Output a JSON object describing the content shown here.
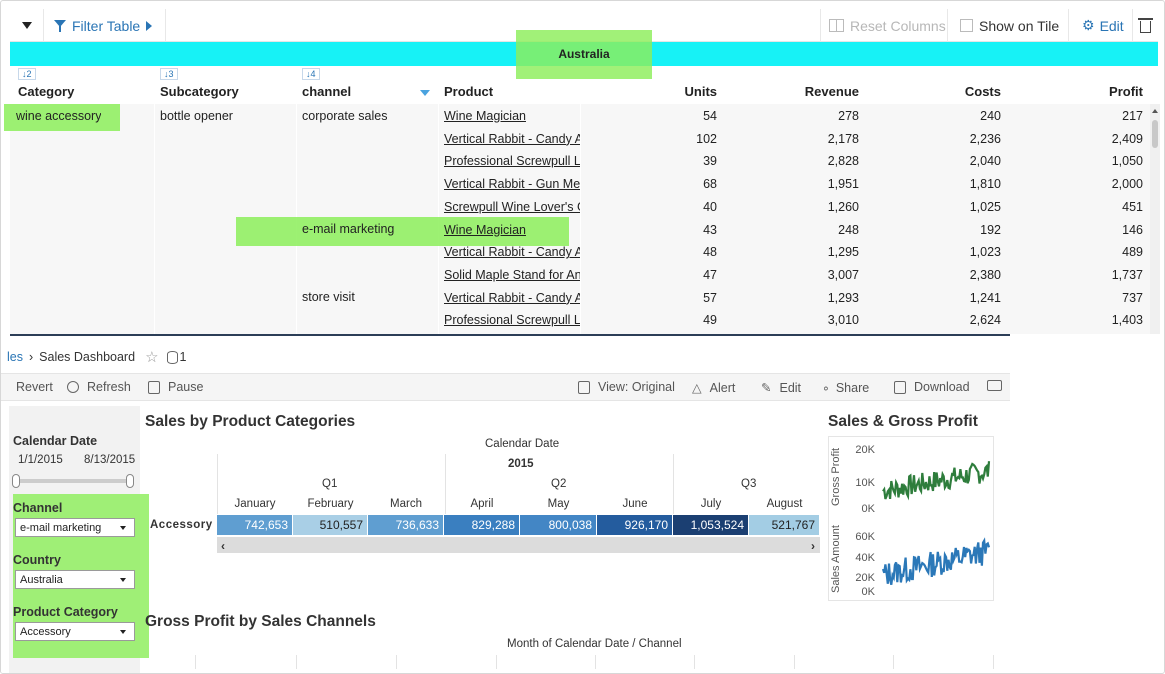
{
  "topbar": {
    "filter_label": "Filter Table",
    "reset_columns": "Reset Columns",
    "show_on_tile": "Show on Tile",
    "edit": "Edit"
  },
  "band": {
    "country": "Australia"
  },
  "table": {
    "sort_chips": [
      "↓2",
      "↓3",
      "↓4"
    ],
    "headers": [
      "Category",
      "Subcategory",
      "channel",
      "Product",
      "Units",
      "Revenue",
      "Costs",
      "Profit"
    ],
    "category": "wine accessory",
    "subcategory": "bottle opener",
    "channels": [
      "corporate sales",
      "e-mail marketing",
      "store visit"
    ],
    "rows": [
      {
        "product": "Wine Magician",
        "units": "54",
        "revenue": "278",
        "costs": "240",
        "profit": "217"
      },
      {
        "product": "Vertical Rabbit - Candy Apple",
        "units": "102",
        "revenue": "2,178",
        "costs": "2,236",
        "profit": "2,409"
      },
      {
        "product": "Professional Screwpull Lever",
        "units": "39",
        "revenue": "2,828",
        "costs": "2,040",
        "profit": "1,050"
      },
      {
        "product": "Vertical Rabbit - Gun Metal",
        "units": "68",
        "revenue": "1,951",
        "costs": "1,810",
        "profit": "2,000"
      },
      {
        "product": "Screwpull Wine Lover's Gift",
        "units": "40",
        "revenue": "1,260",
        "costs": "1,025",
        "profit": "451"
      },
      {
        "product": "Wine Magician",
        "units": "43",
        "revenue": "248",
        "costs": "192",
        "profit": "146"
      },
      {
        "product": "Vertical Rabbit - Candy Apple",
        "units": "48",
        "revenue": "1,295",
        "costs": "1,023",
        "profit": "489"
      },
      {
        "product": "Solid Maple Stand for Antique",
        "units": "47",
        "revenue": "3,007",
        "costs": "2,380",
        "profit": "1,737"
      },
      {
        "product": "Vertical Rabbit - Candy Apple",
        "units": "57",
        "revenue": "1,293",
        "costs": "1,241",
        "profit": "737"
      },
      {
        "product": "Professional Screwpull Lever",
        "units": "49",
        "revenue": "3,010",
        "costs": "2,624",
        "profit": "1,403"
      }
    ]
  },
  "dashboard": {
    "breadcrumb_link": "les",
    "breadcrumb_sep": "›",
    "breadcrumb_current": "Sales Dashboard",
    "datasource_count": "1",
    "toolbar": {
      "revert": "Revert",
      "refresh": "Refresh",
      "pause": "Pause",
      "view": "View: Original",
      "alert": "Alert",
      "edit": "Edit",
      "share": "Share",
      "download": "Download"
    },
    "filters": {
      "calendar_label": "Calendar Date",
      "date_start": "1/1/2015",
      "date_end": "8/13/2015",
      "channel_label": "Channel",
      "channel_value": "e-mail marketing",
      "country_label": "Country",
      "country_value": "Australia",
      "category_label": "Product Category",
      "category_value": "Accessory"
    },
    "heatmap": {
      "title": "Sales by Product Categories",
      "header_top": "Calendar Date",
      "year": "2015",
      "quarters": [
        "Q1",
        "Q2",
        "Q3"
      ],
      "months": [
        "January",
        "February",
        "March",
        "April",
        "May",
        "June",
        "July",
        "August"
      ],
      "row_label": "Accessory",
      "values": [
        "742,653",
        "510,557",
        "736,633",
        "829,288",
        "800,038",
        "926,170",
        "1,053,524",
        "521,767"
      ],
      "colors": [
        "#5f9ed1",
        "#a9cfe6",
        "#5f9ed1",
        "#3a7fc0",
        "#4386c5",
        "#245c9e",
        "#1b3f72",
        "#a3cde4"
      ]
    },
    "gross": {
      "title": "Gross Profit by Sales Channels",
      "header": "Month of Calendar Date  /  Channel"
    },
    "mini": {
      "title": "Sales & Gross Profit",
      "gp_label": "Gross Profit",
      "gp_ticks": [
        "20K",
        "10K",
        "0K"
      ],
      "sa_label": "Sales Amount",
      "sa_ticks": [
        "60K",
        "40K",
        "20K",
        "0K"
      ],
      "gp_color": "#2e7d3c",
      "sa_color": "#2b78b8"
    }
  }
}
